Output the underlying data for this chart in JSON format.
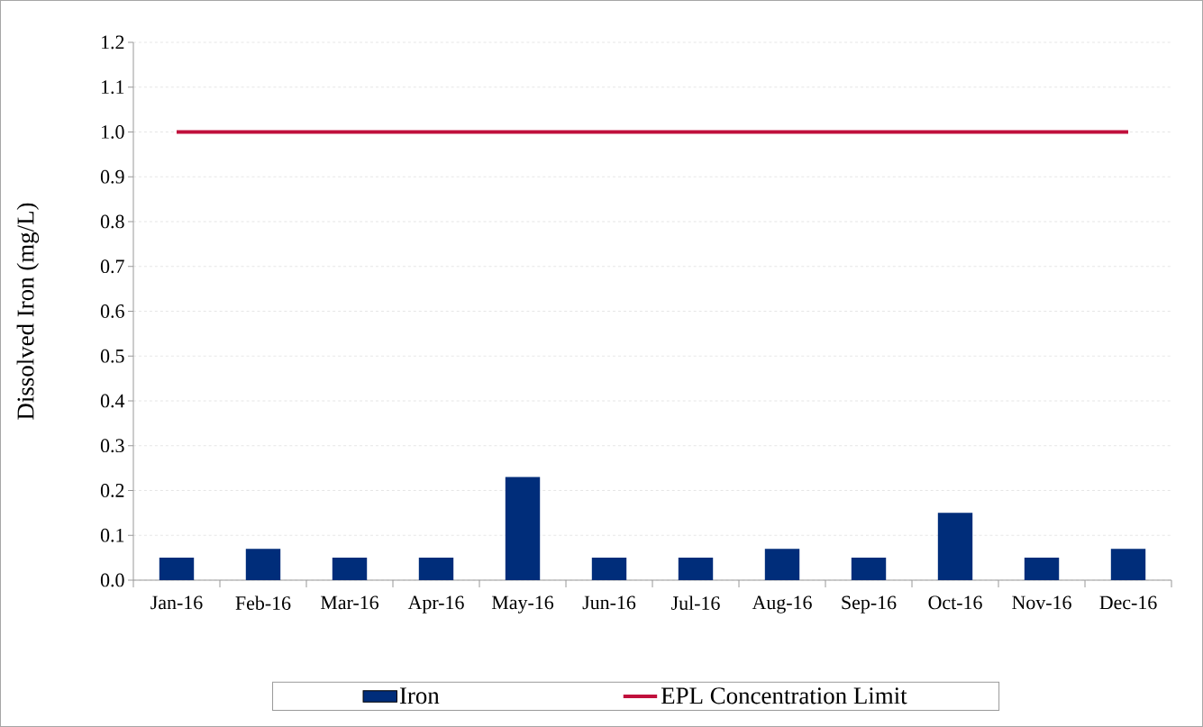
{
  "chart_data": {
    "type": "bar",
    "ylabel": "Dissolved Iron (mg/L)",
    "categories": [
      "Jan-16",
      "Feb-16",
      "Mar-16",
      "Apr-16",
      "May-16",
      "Jun-16",
      "Jul-16",
      "Aug-16",
      "Sep-16",
      "Oct-16",
      "Nov-16",
      "Dec-16"
    ],
    "series": [
      {
        "name": "Iron",
        "color": "#002d7a",
        "values": [
          0.05,
          0.07,
          0.05,
          0.05,
          0.23,
          0.05,
          0.05,
          0.07,
          0.05,
          0.15,
          0.05,
          0.07
        ]
      },
      {
        "name": "EPL Concentration Limit",
        "type": "line",
        "color": "#c0103c",
        "values": [
          1.0,
          1.0,
          1.0,
          1.0,
          1.0,
          1.0,
          1.0,
          1.0,
          1.0,
          1.0,
          1.0,
          1.0
        ]
      }
    ],
    "ylim": [
      0,
      1.2
    ],
    "yticks": [
      {
        "value": 0,
        "label": "0.0"
      },
      {
        "value": 0.1,
        "label": "0.1"
      },
      {
        "value": 0.2,
        "label": "0.2"
      },
      {
        "value": 0.3,
        "label": "0.3"
      },
      {
        "value": 0.4,
        "label": "0.4"
      },
      {
        "value": 0.5,
        "label": "0.5"
      },
      {
        "value": 0.6,
        "label": "0.6"
      },
      {
        "value": 0.7,
        "label": "0.7"
      },
      {
        "value": 0.8,
        "label": "0.8"
      },
      {
        "value": 0.9,
        "label": "0.9"
      },
      {
        "value": 1.0,
        "label": "1.0"
      },
      {
        "value": 1.1,
        "label": "1.1"
      },
      {
        "value": 1.2,
        "label": "1.2"
      }
    ],
    "grid": "y",
    "legend": "bottom"
  }
}
